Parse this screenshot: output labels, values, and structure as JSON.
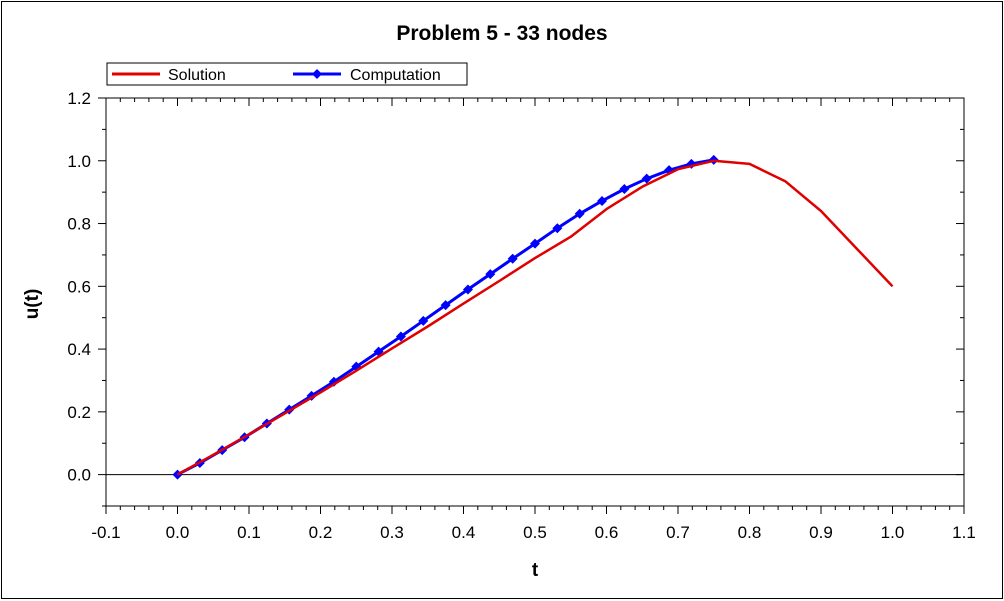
{
  "chart_data": {
    "type": "line",
    "title": "Problem 5 - 33 nodes",
    "xlabel": "t",
    "ylabel": "u(t)",
    "xlim": [
      -0.1,
      1.1
    ],
    "ylim": [
      -0.1,
      1.2
    ],
    "xticks": [
      "-0.1",
      "0.0",
      "0.1",
      "0.2",
      "0.3",
      "0.4",
      "0.5",
      "0.6",
      "0.7",
      "0.8",
      "0.9",
      "1.0",
      "1.1"
    ],
    "yticks": [
      "0.0",
      "0.2",
      "0.4",
      "0.6",
      "0.8",
      "1.0",
      "1.2"
    ],
    "legend_position": "top-left",
    "series": [
      {
        "name": "Solution",
        "color": "#e00000",
        "marker": "none",
        "x": [
          0.0,
          0.05,
          0.1,
          0.15,
          0.2,
          0.25,
          0.3,
          0.35,
          0.4,
          0.45,
          0.5,
          0.55,
          0.6,
          0.65,
          0.7,
          0.75,
          0.8,
          0.85,
          0.9,
          0.95,
          1.0
        ],
        "y": [
          0.0,
          0.063,
          0.128,
          0.195,
          0.262,
          0.331,
          0.402,
          0.472,
          0.545,
          0.617,
          0.69,
          0.758,
          0.846,
          0.917,
          0.973,
          1.0,
          0.99,
          0.935,
          0.84,
          0.72,
          0.6
        ]
      },
      {
        "name": "Computation",
        "color": "#0000ff",
        "marker": "diamond",
        "x": [
          0.0,
          0.03125,
          0.0625,
          0.09375,
          0.125,
          0.15625,
          0.1875,
          0.21875,
          0.25,
          0.28125,
          0.3125,
          0.34375,
          0.375,
          0.40625,
          0.4375,
          0.46875,
          0.5,
          0.53125,
          0.5625,
          0.59375,
          0.625,
          0.65625,
          0.6875,
          0.71875,
          0.75
        ],
        "y": [
          0.0,
          0.037,
          0.078,
          0.119,
          0.163,
          0.207,
          0.251,
          0.296,
          0.344,
          0.392,
          0.44,
          0.49,
          0.54,
          0.59,
          0.639,
          0.688,
          0.736,
          0.785,
          0.831,
          0.872,
          0.91,
          0.943,
          0.97,
          0.99,
          1.003
        ]
      }
    ]
  }
}
